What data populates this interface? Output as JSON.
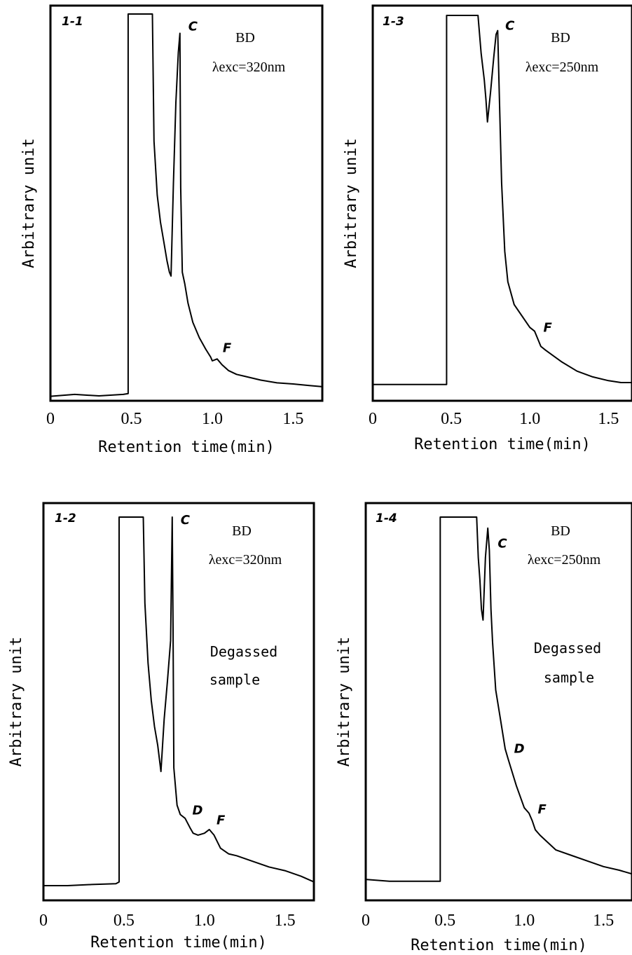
{
  "chart_data": [
    {
      "type": "line",
      "panel_label": "1-1",
      "title": "",
      "xlabel": "Retention time(min)",
      "ylabel": "Arbitrary unit",
      "xlim": [
        0,
        1.68
      ],
      "ylim": [
        0,
        100
      ],
      "x_ticks": [
        "0",
        "0.5",
        "1.0",
        "1.5"
      ],
      "annotations": [
        "BD",
        "λexc=320nm"
      ],
      "peak_labels": [
        {
          "text": "C",
          "x": 0.8
        },
        {
          "text": "F",
          "x": 1.03
        }
      ],
      "series": [
        {
          "x": [
            0,
            0.15,
            0.3,
            0.45,
            0.48,
            0.48,
            0.63,
            0.64,
            0.66,
            0.68,
            0.7,
            0.72,
            0.735,
            0.745,
            0.76,
            0.775,
            0.79,
            0.8,
            0.805,
            0.815,
            0.83,
            0.85,
            0.88,
            0.92,
            0.96,
            0.99,
            1.0,
            1.03,
            1.06,
            1.1,
            1.15,
            1.2,
            1.3,
            1.4,
            1.5,
            1.6,
            1.68
          ],
          "y": [
            0.8,
            1.3,
            0.9,
            1.3,
            1.5,
            100,
            100,
            67,
            53,
            46,
            41,
            36,
            33,
            32,
            56,
            77,
            90,
            95,
            55,
            33,
            30,
            25,
            20,
            16,
            13,
            11,
            10,
            10.5,
            9,
            7.5,
            6.5,
            6,
            5,
            4.3,
            4,
            3.6,
            3.3
          ]
        }
      ]
    },
    {
      "type": "line",
      "panel_label": "1-3",
      "title": "",
      "xlabel": "Retention time(min)",
      "ylabel": "Arbitrary unit",
      "xlim": [
        0,
        1.65
      ],
      "ylim": [
        0,
        100
      ],
      "x_ticks": [
        "0",
        "0.5",
        "1.0",
        "1.5"
      ],
      "annotations": [
        "BD",
        "λexc=250nm"
      ],
      "peak_labels": [
        {
          "text": "C",
          "x": 0.79
        },
        {
          "text": "F",
          "x": 1.05
        }
      ],
      "series": [
        {
          "x": [
            0,
            0.15,
            0.3,
            0.45,
            0.47,
            0.47,
            0.67,
            0.69,
            0.71,
            0.72,
            0.73,
            0.75,
            0.77,
            0.785,
            0.795,
            0.805,
            0.82,
            0.84,
            0.86,
            0.9,
            0.95,
            1.0,
            1.03,
            1.05,
            1.07,
            1.1,
            1.2,
            1.3,
            1.4,
            1.5,
            1.58,
            1.65
          ],
          "y": [
            3,
            3,
            3,
            3,
            3,
            100,
            100,
            90,
            83,
            78,
            72,
            80,
            89,
            95,
            96,
            80,
            56,
            38,
            30,
            24,
            21,
            18,
            17,
            15,
            13,
            12,
            9,
            6.5,
            5,
            4,
            3.5,
            3.5
          ]
        }
      ]
    },
    {
      "type": "line",
      "panel_label": "1-2",
      "title": "",
      "xlabel": "Retention time(min)",
      "ylabel": "Arbitrary unit",
      "xlim": [
        0,
        1.68
      ],
      "ylim": [
        0,
        100
      ],
      "x_ticks": [
        "0",
        "0.5",
        "1.0",
        "1.5"
      ],
      "annotations": [
        "BD",
        "λexc=320nm",
        "Degassed",
        "sample"
      ],
      "peak_labels": [
        {
          "text": "C",
          "x": 0.8
        },
        {
          "text": "D",
          "x": 0.89
        },
        {
          "text": "F",
          "x": 1.04
        }
      ],
      "series": [
        {
          "x": [
            0,
            0.15,
            0.3,
            0.45,
            0.47,
            0.47,
            0.62,
            0.63,
            0.65,
            0.67,
            0.69,
            0.71,
            0.73,
            0.75,
            0.77,
            0.79,
            0.8,
            0.805,
            0.81,
            0.83,
            0.85,
            0.88,
            0.91,
            0.93,
            0.96,
            1.0,
            1.03,
            1.06,
            1.1,
            1.15,
            1.2,
            1.3,
            1.4,
            1.5,
            1.6,
            1.68
          ],
          "y": [
            1.5,
            1.5,
            1.8,
            2,
            2.5,
            100,
            100,
            77,
            61,
            51,
            44,
            39,
            32,
            46,
            56,
            67,
            100,
            70,
            33,
            23,
            20.5,
            19.5,
            17,
            15.5,
            15,
            15.5,
            16.5,
            15,
            11.5,
            10,
            9.5,
            8,
            6.5,
            5.5,
            4,
            2.5
          ]
        }
      ]
    },
    {
      "type": "line",
      "panel_label": "1-4",
      "title": "",
      "xlabel": "Retention time(min)",
      "ylabel": "Arbitrary unit",
      "xlim": [
        0,
        1.68
      ],
      "ylim": [
        0,
        100
      ],
      "x_ticks": [
        "0",
        "0.5",
        "1.0",
        "1.5"
      ],
      "annotations": [
        "BD",
        "λexc=250nm",
        "Degassed",
        "sample"
      ],
      "peak_labels": [
        {
          "text": "C",
          "x": 0.78
        },
        {
          "text": "D",
          "x": 0.9
        },
        {
          "text": "F",
          "x": 1.05
        }
      ],
      "series": [
        {
          "x": [
            0,
            0.15,
            0.3,
            0.45,
            0.47,
            0.47,
            0.7,
            0.71,
            0.72,
            0.73,
            0.74,
            0.755,
            0.77,
            0.78,
            0.79,
            0.8,
            0.82,
            0.85,
            0.88,
            0.9,
            0.95,
            1.0,
            1.03,
            1.05,
            1.07,
            1.1,
            1.2,
            1.3,
            1.4,
            1.5,
            1.6,
            1.68
          ],
          "y": [
            1.5,
            1,
            1,
            1,
            1,
            100,
            100,
            89,
            83,
            75,
            72,
            89,
            97,
            91,
            75,
            66,
            53,
            45,
            37,
            34,
            27,
            21,
            19.5,
            17.5,
            15,
            13.5,
            9.5,
            8,
            6.5,
            5,
            4,
            3
          ]
        }
      ]
    }
  ]
}
